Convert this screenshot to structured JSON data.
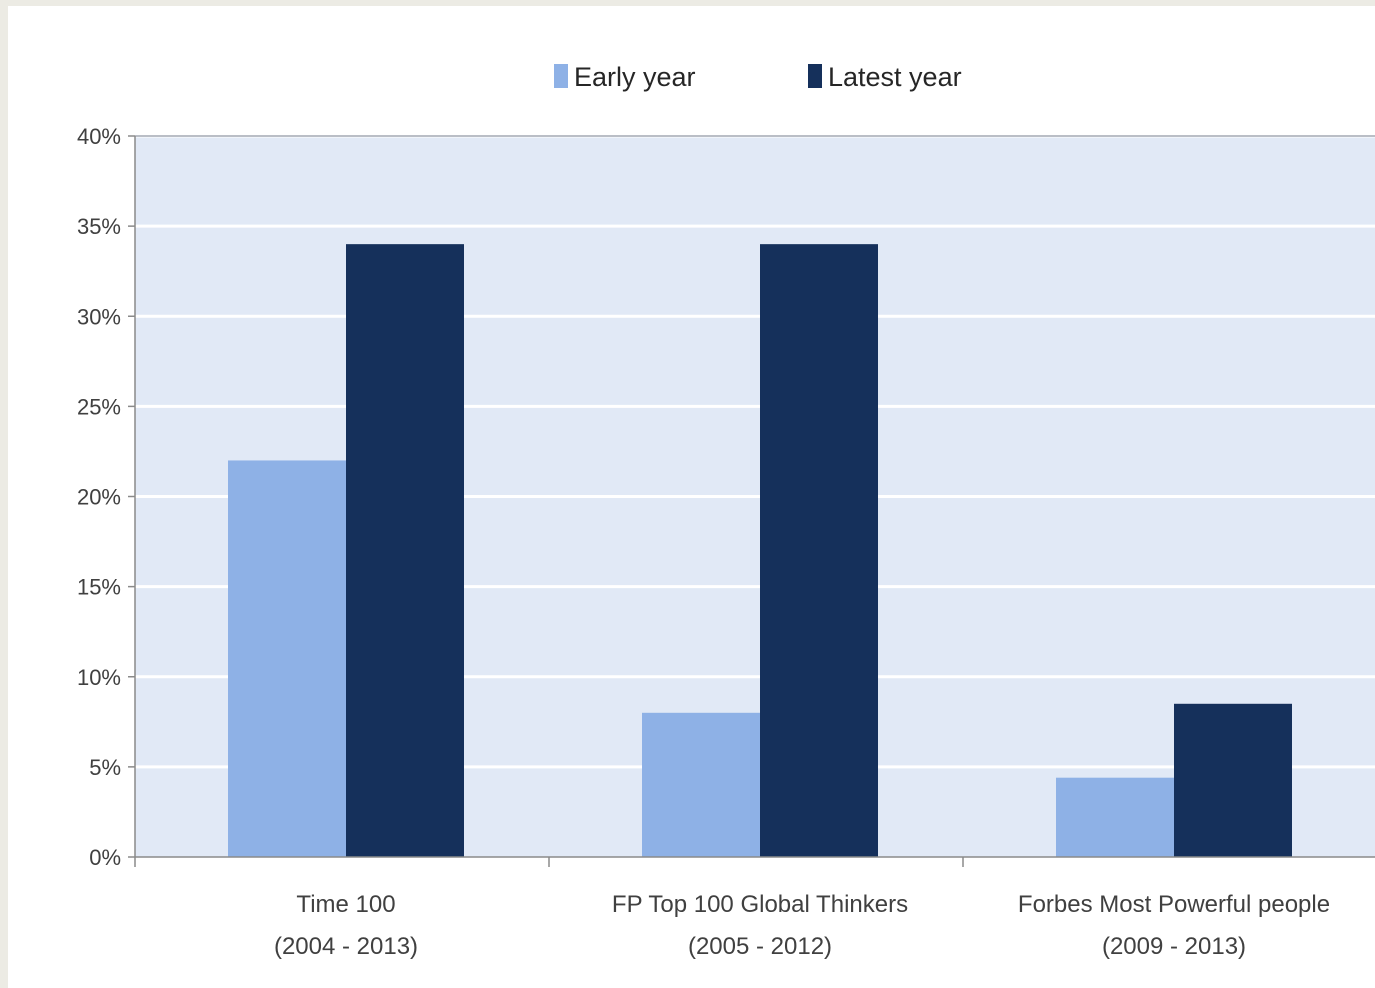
{
  "chart_data": {
    "type": "bar",
    "categories": [
      [
        "Time 100",
        "(2004 - 2013)"
      ],
      [
        "FP Top 100 Global Thinkers",
        "(2005 - 2012)"
      ],
      [
        "Forbes Most Powerful people",
        "(2009 - 2013)"
      ]
    ],
    "series": [
      {
        "name": "Early year",
        "color": "#8eb1e6",
        "values": [
          22,
          8,
          4.4
        ]
      },
      {
        "name": "Latest year",
        "color": "#15305b",
        "values": [
          34,
          34,
          8.5
        ]
      }
    ],
    "ylim": [
      0,
      40
    ],
    "ytick_step": 5,
    "ytick_labels": [
      "0%",
      "5%",
      "10%",
      "15%",
      "20%",
      "25%",
      "30%",
      "35%",
      "40%"
    ],
    "grid": true,
    "legend_position": "top-center",
    "plot_background": "#e1e9f6"
  }
}
